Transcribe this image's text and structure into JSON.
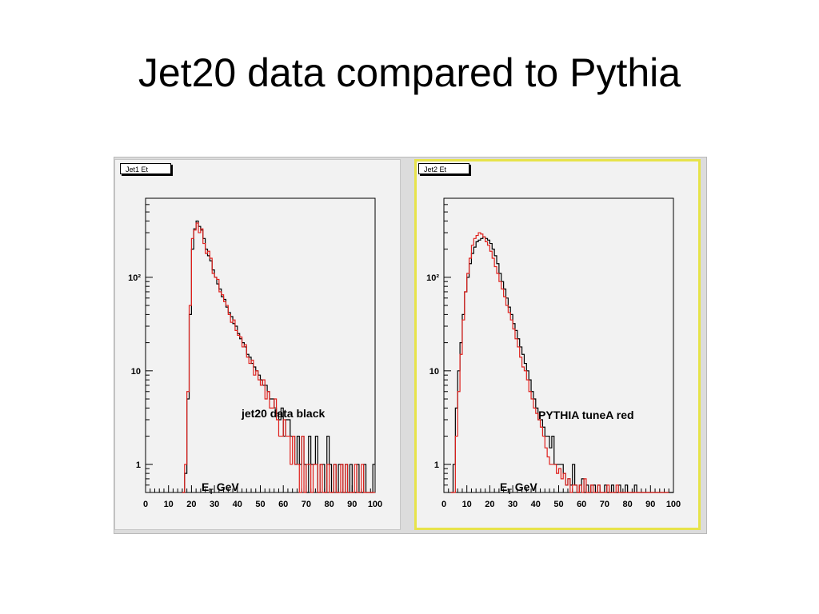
{
  "slide": {
    "title": "Jet20 data compared to Pythia"
  },
  "colors": {
    "data_line": "#000000",
    "mc_line": "#e0201c",
    "pad_bg": "#f2f2f2",
    "selected_border": "#e7e34a"
  },
  "chart_data": [
    {
      "type": "line",
      "panel_title": "Jet1 Et",
      "xlabel": "E_T GeV",
      "ylabel": "",
      "xlim": [
        0,
        100
      ],
      "ylim": [
        0.5,
        700
      ],
      "yscale": "log",
      "x_ticks": [
        "0",
        "10",
        "20",
        "30",
        "40",
        "50",
        "60",
        "70",
        "80",
        "90",
        "100"
      ],
      "y_ticks": [
        {
          "value": 1,
          "label": "1"
        },
        {
          "value": 10,
          "label": "10"
        },
        {
          "value": 100,
          "label": "10²"
        }
      ],
      "annotation": "jet20 data black",
      "bin_width": 1,
      "x_start": 16,
      "series": [
        {
          "color": "black",
          "values": [
            0,
            0.8,
            5,
            40,
            200,
            330,
            400,
            350,
            320,
            260,
            200,
            170,
            150,
            120,
            100,
            85,
            75,
            62,
            58,
            48,
            42,
            38,
            32,
            30,
            25,
            22,
            20,
            18,
            15,
            14,
            12,
            11,
            10,
            9,
            8,
            7,
            7,
            6,
            5,
            5,
            4,
            3.5,
            3,
            4,
            2,
            3,
            3,
            2,
            2,
            1,
            2,
            1,
            2,
            1,
            0,
            2,
            1,
            1,
            2,
            0,
            1,
            1,
            0,
            2,
            1,
            0,
            1,
            0,
            1,
            1,
            0,
            1,
            0,
            1,
            0,
            0,
            1,
            0,
            0,
            1,
            0,
            0,
            0,
            1
          ]
        },
        {
          "color": "red",
          "values": [
            0,
            1,
            6,
            50,
            260,
            320,
            380,
            300,
            330,
            230,
            180,
            190,
            160,
            110,
            100,
            95,
            70,
            65,
            55,
            50,
            40,
            33,
            35,
            27,
            24,
            23,
            18,
            19,
            14,
            12,
            13,
            9,
            10,
            8,
            7,
            8,
            5,
            6,
            4,
            4,
            5,
            3,
            2,
            2,
            3,
            2,
            2,
            1,
            2,
            1,
            1,
            0,
            2,
            0,
            1,
            1,
            0,
            1,
            1,
            0,
            1,
            0,
            0,
            1,
            0,
            0,
            1,
            0,
            0,
            1,
            0,
            1,
            0,
            0,
            0,
            1,
            0,
            0,
            1,
            0,
            0,
            0,
            0,
            0
          ]
        }
      ]
    },
    {
      "type": "line",
      "panel_title": "Jet2 Et",
      "xlabel": "E_T GeV",
      "ylabel": "",
      "xlim": [
        0,
        100
      ],
      "ylim": [
        0.5,
        700
      ],
      "yscale": "log",
      "x_ticks": [
        "0",
        "10",
        "20",
        "30",
        "40",
        "50",
        "60",
        "70",
        "80",
        "90",
        "100"
      ],
      "y_ticks": [
        {
          "value": 1,
          "label": "1"
        },
        {
          "value": 10,
          "label": "10"
        },
        {
          "value": 100,
          "label": "10²"
        }
      ],
      "annotation": "PYTHIA tuneA red",
      "bin_width": 1,
      "x_start": 3,
      "series": [
        {
          "color": "black",
          "values": [
            0,
            1,
            4,
            10,
            20,
            40,
            70,
            100,
            140,
            180,
            210,
            240,
            250,
            260,
            270,
            260,
            250,
            230,
            200,
            170,
            140,
            110,
            90,
            75,
            60,
            48,
            40,
            32,
            27,
            22,
            18,
            15,
            12,
            10,
            8,
            6,
            5,
            4,
            3,
            3,
            2.5,
            2,
            2,
            1.5,
            2,
            1,
            1,
            1,
            1,
            0.8,
            0.6,
            0.7,
            0.6,
            1,
            0.6,
            0.5,
            0.6,
            0.7,
            0.5,
            0.6,
            0.5,
            0.6,
            0.6,
            0.5,
            0.6,
            0.5,
            0.5,
            0.6,
            0.5,
            0.5,
            0.6,
            0.5,
            0.5,
            0.6,
            0.5,
            0.5,
            0.6,
            0.5,
            0.5,
            0.5,
            0.6,
            0.5,
            0.5,
            0.5,
            0.5,
            0.5,
            0.5,
            0.5,
            0.5,
            0.5,
            0.5,
            0.5,
            0.5,
            0.5,
            0.5,
            0.5,
            0.5
          ]
        },
        {
          "color": "red",
          "values": [
            0,
            0.5,
            2,
            6,
            15,
            35,
            70,
            110,
            160,
            220,
            260,
            280,
            300,
            290,
            270,
            240,
            220,
            190,
            160,
            130,
            110,
            90,
            75,
            62,
            50,
            42,
            35,
            28,
            22,
            18,
            14,
            11,
            10,
            8,
            6,
            5,
            4,
            3.5,
            3,
            2.5,
            2,
            1.5,
            1.2,
            1,
            1,
            1,
            0.8,
            0.9,
            0.7,
            0.8,
            0.6,
            0.7,
            0.5,
            0.6,
            0.6,
            0.5,
            0.6,
            0.5,
            0.7,
            0.5,
            0.5,
            0.6,
            0.5,
            0.5,
            0.6,
            0.5,
            0.5,
            0.5,
            0.6,
            0.5,
            0.5,
            0.5,
            0.6,
            0.5,
            0.5,
            0.5,
            0.5,
            0.5,
            0.5,
            0.5,
            0.5,
            0.5,
            0.5,
            0.5,
            0.5,
            0.5,
            0.5,
            0.5,
            0.5,
            0.5,
            0.5,
            0.5,
            0.5,
            0.5,
            0.5
          ]
        }
      ]
    }
  ]
}
